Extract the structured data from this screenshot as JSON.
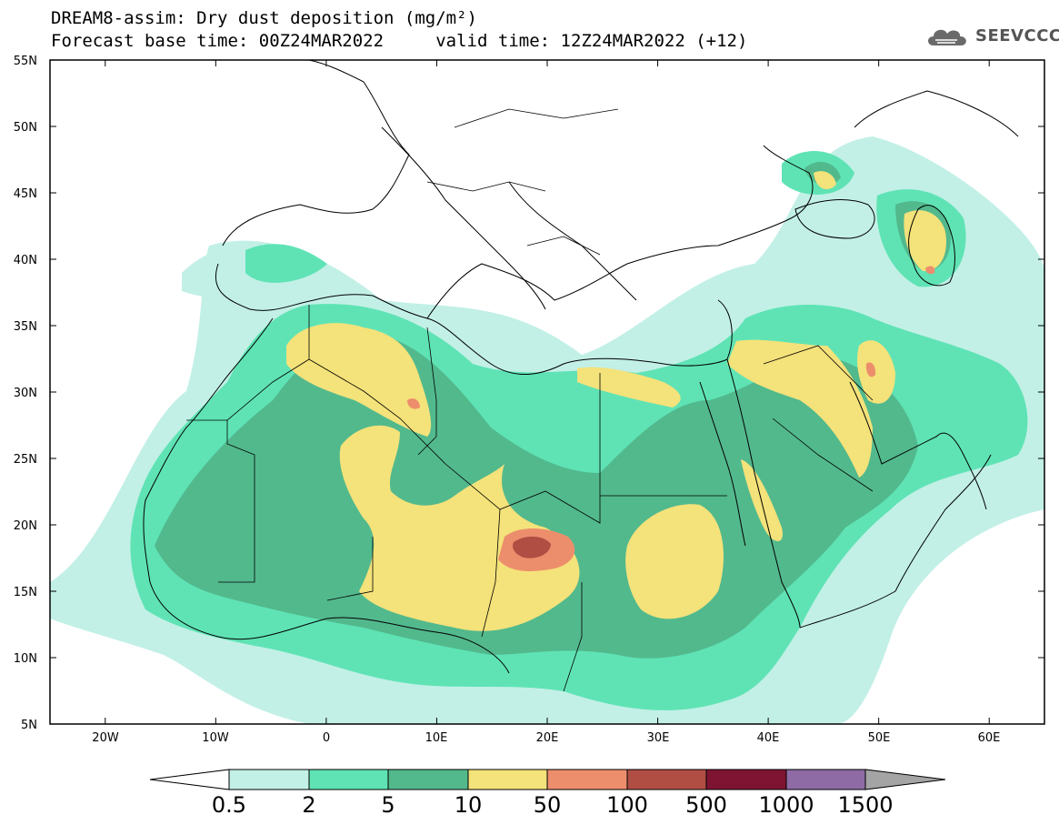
{
  "header": {
    "title": "DREAM8-assim: Dry dust deposition (mg/m²)",
    "subtitle": "Forecast base time: 00Z24MAR2022     valid time: 12Z24MAR2022 (+12)",
    "logo": "SEEVCCC"
  },
  "map": {
    "lon_range": [
      -25,
      65
    ],
    "lat_range": [
      5,
      55
    ],
    "lat_ticks": [
      "55N",
      "50N",
      "45N",
      "40N",
      "35N",
      "30N",
      "25N",
      "20N",
      "15N",
      "10N",
      "5N"
    ],
    "lon_ticks": [
      "20W",
      "10W",
      "0",
      "10E",
      "20E",
      "30E",
      "40E",
      "50E",
      "60E"
    ]
  },
  "colorbar": {
    "labels": [
      "0.5",
      "2",
      "5",
      "10",
      "50",
      "100",
      "500",
      "1000",
      "1500"
    ],
    "colors": [
      "#c2f0e6",
      "#5fe3b5",
      "#52b98d",
      "#f4e27a",
      "#ec8e6c",
      "#b04e44",
      "#7e1432",
      "#8e6ba5"
    ],
    "under_color": "#ffffff",
    "over_color": "#a4a4a4"
  }
}
